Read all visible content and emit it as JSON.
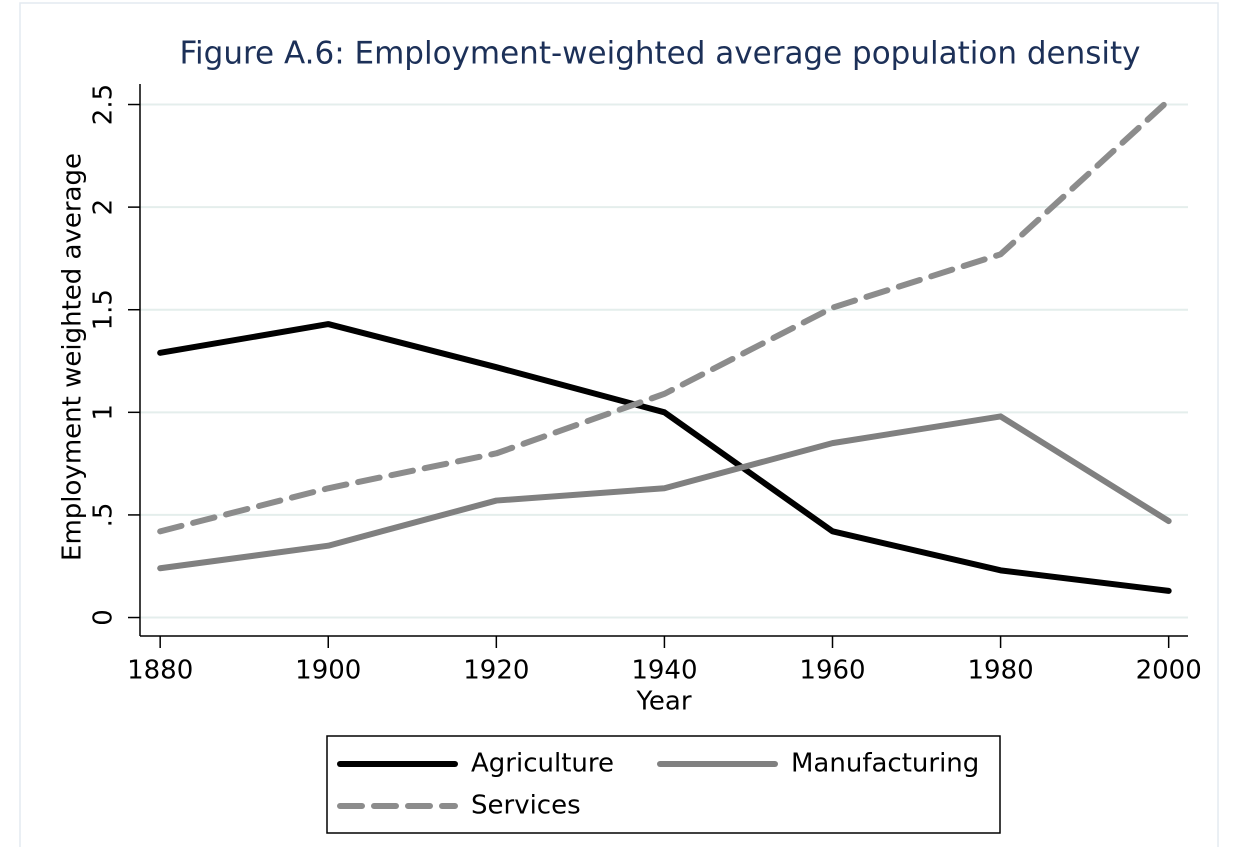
{
  "chart_data": {
    "type": "line",
    "title": "Figure A.6: Employment-weighted average population density",
    "xlabel": "Year",
    "ylabel": "Employment weighted average",
    "x": [
      1880,
      1900,
      1920,
      1940,
      1960,
      1980,
      2000
    ],
    "series": [
      {
        "name": "Agriculture",
        "color": "#000000",
        "dash": false,
        "values": [
          1.29,
          1.43,
          1.22,
          1.0,
          0.42,
          0.23,
          0.13
        ]
      },
      {
        "name": "Manufacturing",
        "color": "#808080",
        "dash": false,
        "values": [
          0.24,
          0.35,
          0.57,
          0.63,
          0.85,
          0.98,
          0.47
        ]
      },
      {
        "name": "Services",
        "color": "#8c8c8c",
        "dash": true,
        "values": [
          0.42,
          0.63,
          0.8,
          1.09,
          1.51,
          1.77,
          2.52
        ]
      }
    ],
    "xlim": [
      1877.6,
      2002.3
    ],
    "xticks": [
      1880,
      1900,
      1920,
      1940,
      1960,
      1980,
      2000
    ],
    "ylim": [
      -0.09,
      2.6
    ],
    "yticks": [
      0,
      {
        "value": 0.5,
        "label": ".5"
      },
      1,
      1.5,
      2,
      2.5
    ],
    "grid": true,
    "legend": "bottom"
  }
}
